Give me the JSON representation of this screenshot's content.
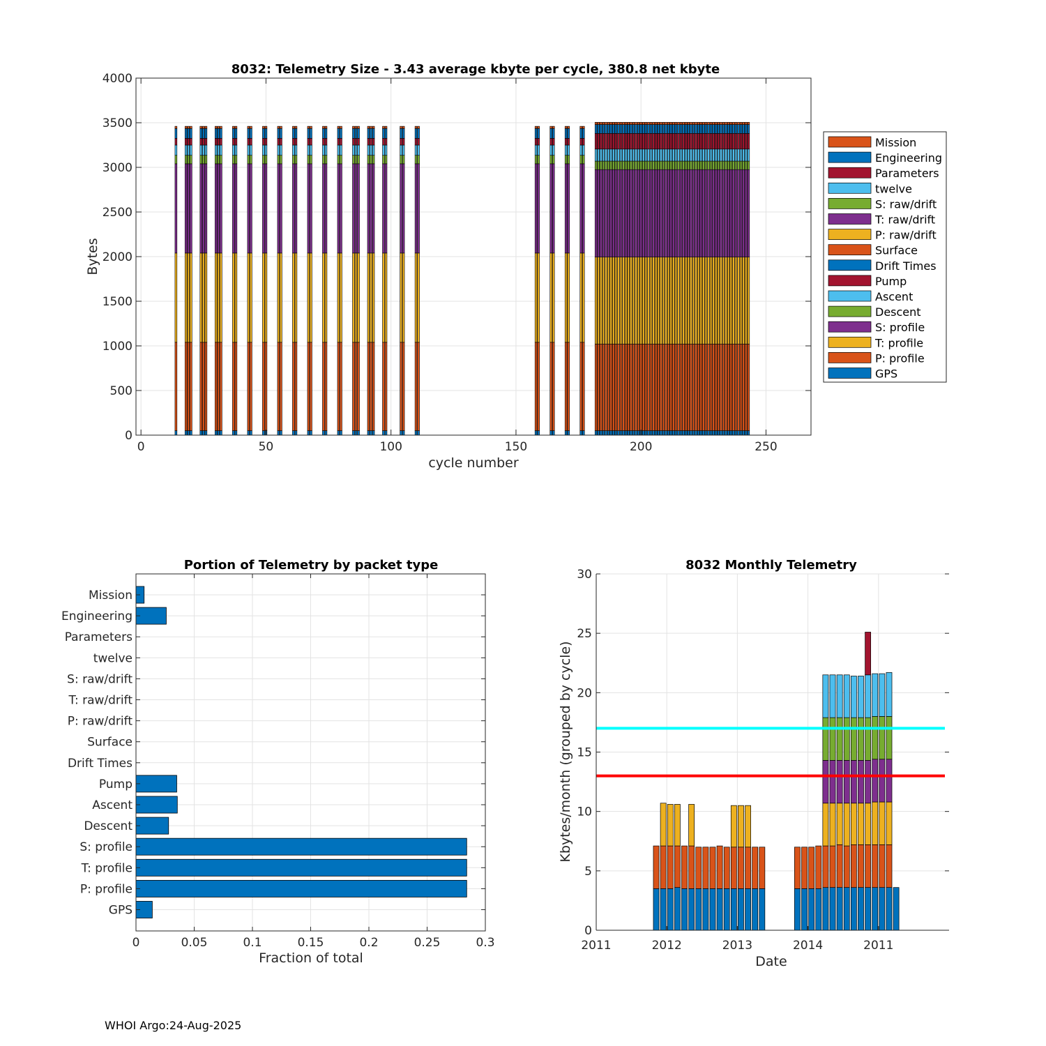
{
  "footer": "WHOI Argo:24-Aug-2025",
  "chart_data": [
    {
      "id": "telemetry-size",
      "type": "bar",
      "stacked": true,
      "title": "8032: Telemetry Size - 3.43 average kbyte per cycle,  380.8 net kbyte",
      "xlabel": "cycle number",
      "ylabel": "Bytes",
      "xlim": [
        -2,
        268
      ],
      "ylim": [
        0,
        4000
      ],
      "xticks": [
        0,
        50,
        100,
        150,
        200,
        250
      ],
      "yticks": [
        0,
        500,
        1000,
        1500,
        2000,
        2500,
        3000,
        3500,
        4000
      ],
      "grid": true,
      "legend_position": "right",
      "legend": [
        "Mission",
        "Engineering",
        "Parameters",
        "twelve",
        "S: raw/drift",
        "T: raw/drift",
        "P: raw/drift",
        "Surface",
        "Drift Times",
        "Pump",
        "Ascent",
        "Descent",
        "S: profile",
        "T: profile",
        "P: profile",
        "GPS"
      ],
      "legend_colors": [
        "#D95319",
        "#0072BD",
        "#A2142F",
        "#4DBEEE",
        "#77AC30",
        "#7E2F8E",
        "#EDB120",
        "#D95319",
        "#0072BD",
        "#A2142F",
        "#4DBEEE",
        "#77AC30",
        "#7E2F8E",
        "#EDB120",
        "#D95319",
        "#0072BD"
      ],
      "cycles": [
        14,
        18,
        19,
        20,
        24,
        25,
        26,
        30,
        31,
        32,
        37,
        38,
        43,
        44,
        49,
        50,
        55,
        56,
        61,
        62,
        67,
        68,
        73,
        74,
        79,
        80,
        85,
        86,
        87,
        91,
        92,
        93,
        97,
        98,
        104,
        105,
        110,
        111,
        158,
        159,
        164,
        165,
        170,
        171,
        176,
        177,
        182,
        183,
        184,
        185,
        186,
        187,
        188,
        189,
        190,
        191,
        192,
        193,
        194,
        195,
        196,
        197,
        198,
        199,
        200,
        201,
        202,
        203,
        204,
        205,
        206,
        207,
        208,
        209,
        210,
        211,
        212,
        213,
        214,
        215,
        216,
        217,
        218,
        219,
        220,
        221,
        222,
        223,
        224,
        225,
        226,
        227,
        228,
        229,
        230,
        231,
        232,
        233,
        234,
        235,
        236,
        237,
        238,
        239,
        240,
        241,
        242,
        243
      ],
      "segment_order": [
        "GPS",
        "P: profile",
        "T: profile",
        "S: profile",
        "Descent",
        "Ascent",
        "Pump",
        "Engineering",
        "Mission"
      ],
      "segment_colors": [
        "#0072BD",
        "#D95319",
        "#EDB120",
        "#7E2F8E",
        "#77AC30",
        "#4DBEEE",
        "#A2142F",
        "#0072BD",
        "#D95319"
      ],
      "segments_early": [
        50,
        990,
        1000,
        1000,
        95,
        115,
        75,
        110,
        25
      ],
      "segments_late": [
        50,
        970,
        975,
        980,
        95,
        135,
        175,
        100,
        25
      ]
    },
    {
      "id": "telemetry-portion",
      "type": "bar",
      "orientation": "horizontal",
      "title": "Portion of Telemetry by packet type",
      "xlabel": "Fraction of total",
      "ylabel": "",
      "xlim": [
        0,
        0.3
      ],
      "xticks": [
        "0",
        "0.05",
        "0.1",
        "0.15",
        "0.2",
        "0.25",
        "0.3"
      ],
      "grid": true,
      "color": "#0072BD",
      "categories": [
        "Mission",
        "Engineering",
        "Parameters",
        "twelve",
        "S: raw/drift",
        "T: raw/drift",
        "P: raw/drift",
        "Surface",
        "Drift Times",
        "Pump",
        "Ascent",
        "Descent",
        "S: profile",
        "T: profile",
        "P: profile",
        "GPS"
      ],
      "values": [
        0.007,
        0.026,
        0,
        0,
        0,
        0,
        0,
        0,
        0,
        0.035,
        0.0355,
        0.028,
        0.284,
        0.284,
        0.284,
        0.014
      ]
    },
    {
      "id": "monthly-telemetry",
      "type": "bar",
      "stacked": true,
      "title": "8032 Monthly Telemetry",
      "xlabel": "Date",
      "ylabel": "Kbytes/month (grouped by cycle)",
      "xlim": [
        0,
        50
      ],
      "ylim": [
        0,
        30
      ],
      "yticks": [
        0,
        5,
        10,
        15,
        20,
        25,
        30
      ],
      "xtick_labels": [
        "2011",
        "2012",
        "2013",
        "2014",
        "2011"
      ],
      "xtick_positions": [
        0,
        10,
        20,
        30,
        40
      ],
      "grid": true,
      "hlines": [
        {
          "value": 17,
          "color": "#00FFFF"
        },
        {
          "value": 13,
          "color": "#FF0000"
        }
      ],
      "segment_colors": [
        "#0072BD",
        "#D95319",
        "#EDB120",
        "#7E2F8E",
        "#77AC30",
        "#4DBEEE",
        "#A2142F"
      ],
      "bars": [
        {
          "x": 8.5,
          "segments": [
            3.5,
            3.6
          ]
        },
        {
          "x": 9.5,
          "segments": [
            3.5,
            3.6,
            3.6
          ]
        },
        {
          "x": 10.5,
          "segments": [
            3.5,
            3.6,
            3.5
          ]
        },
        {
          "x": 11.5,
          "segments": [
            3.6,
            3.5,
            3.5
          ]
        },
        {
          "x": 12.5,
          "segments": [
            3.5,
            3.6
          ]
        },
        {
          "x": 13.5,
          "segments": [
            3.5,
            3.6,
            3.5
          ]
        },
        {
          "x": 14.5,
          "segments": [
            3.5,
            3.5
          ]
        },
        {
          "x": 15.5,
          "segments": [
            3.5,
            3.5
          ]
        },
        {
          "x": 16.5,
          "segments": [
            3.5,
            3.5
          ]
        },
        {
          "x": 17.5,
          "segments": [
            3.5,
            3.6
          ]
        },
        {
          "x": 18.5,
          "segments": [
            3.5,
            3.5
          ]
        },
        {
          "x": 19.5,
          "segments": [
            3.5,
            3.5,
            3.5
          ]
        },
        {
          "x": 20.5,
          "segments": [
            3.5,
            3.5,
            3.5
          ]
        },
        {
          "x": 21.5,
          "segments": [
            3.5,
            3.5,
            3.5
          ]
        },
        {
          "x": 22.5,
          "segments": [
            3.5,
            3.5
          ]
        },
        {
          "x": 23.5,
          "segments": [
            3.5,
            3.5
          ]
        },
        {
          "x": 28.5,
          "segments": [
            3.5,
            3.5
          ]
        },
        {
          "x": 29.5,
          "segments": [
            3.5,
            3.5
          ]
        },
        {
          "x": 30.5,
          "segments": [
            3.5,
            3.5
          ]
        },
        {
          "x": 31.5,
          "segments": [
            3.5,
            3.6
          ]
        },
        {
          "x": 32.5,
          "segments": [
            3.6,
            3.5,
            3.6,
            3.6,
            3.6,
            3.6
          ]
        },
        {
          "x": 33.5,
          "segments": [
            3.6,
            3.5,
            3.6,
            3.6,
            3.6,
            3.6
          ]
        },
        {
          "x": 34.5,
          "segments": [
            3.6,
            3.6,
            3.5,
            3.6,
            3.6,
            3.6
          ]
        },
        {
          "x": 35.5,
          "segments": [
            3.6,
            3.5,
            3.6,
            3.6,
            3.6,
            3.6
          ]
        },
        {
          "x": 36.5,
          "segments": [
            3.6,
            3.6,
            3.5,
            3.6,
            3.6,
            3.5
          ]
        },
        {
          "x": 37.5,
          "segments": [
            3.6,
            3.6,
            3.5,
            3.6,
            3.6,
            3.5
          ]
        },
        {
          "x": 38.5,
          "segments": [
            3.6,
            3.6,
            3.5,
            3.6,
            3.6,
            3.6,
            3.6
          ]
        },
        {
          "x": 39.5,
          "segments": [
            3.6,
            3.6,
            3.6,
            3.6,
            3.6,
            3.6
          ]
        },
        {
          "x": 40.5,
          "segments": [
            3.6,
            3.6,
            3.6,
            3.6,
            3.6,
            3.6
          ]
        },
        {
          "x": 41.5,
          "segments": [
            3.6,
            3.6,
            3.6,
            3.6,
            3.6,
            3.7
          ]
        },
        {
          "x": 42.5,
          "segments": [
            3.6
          ]
        }
      ]
    }
  ]
}
